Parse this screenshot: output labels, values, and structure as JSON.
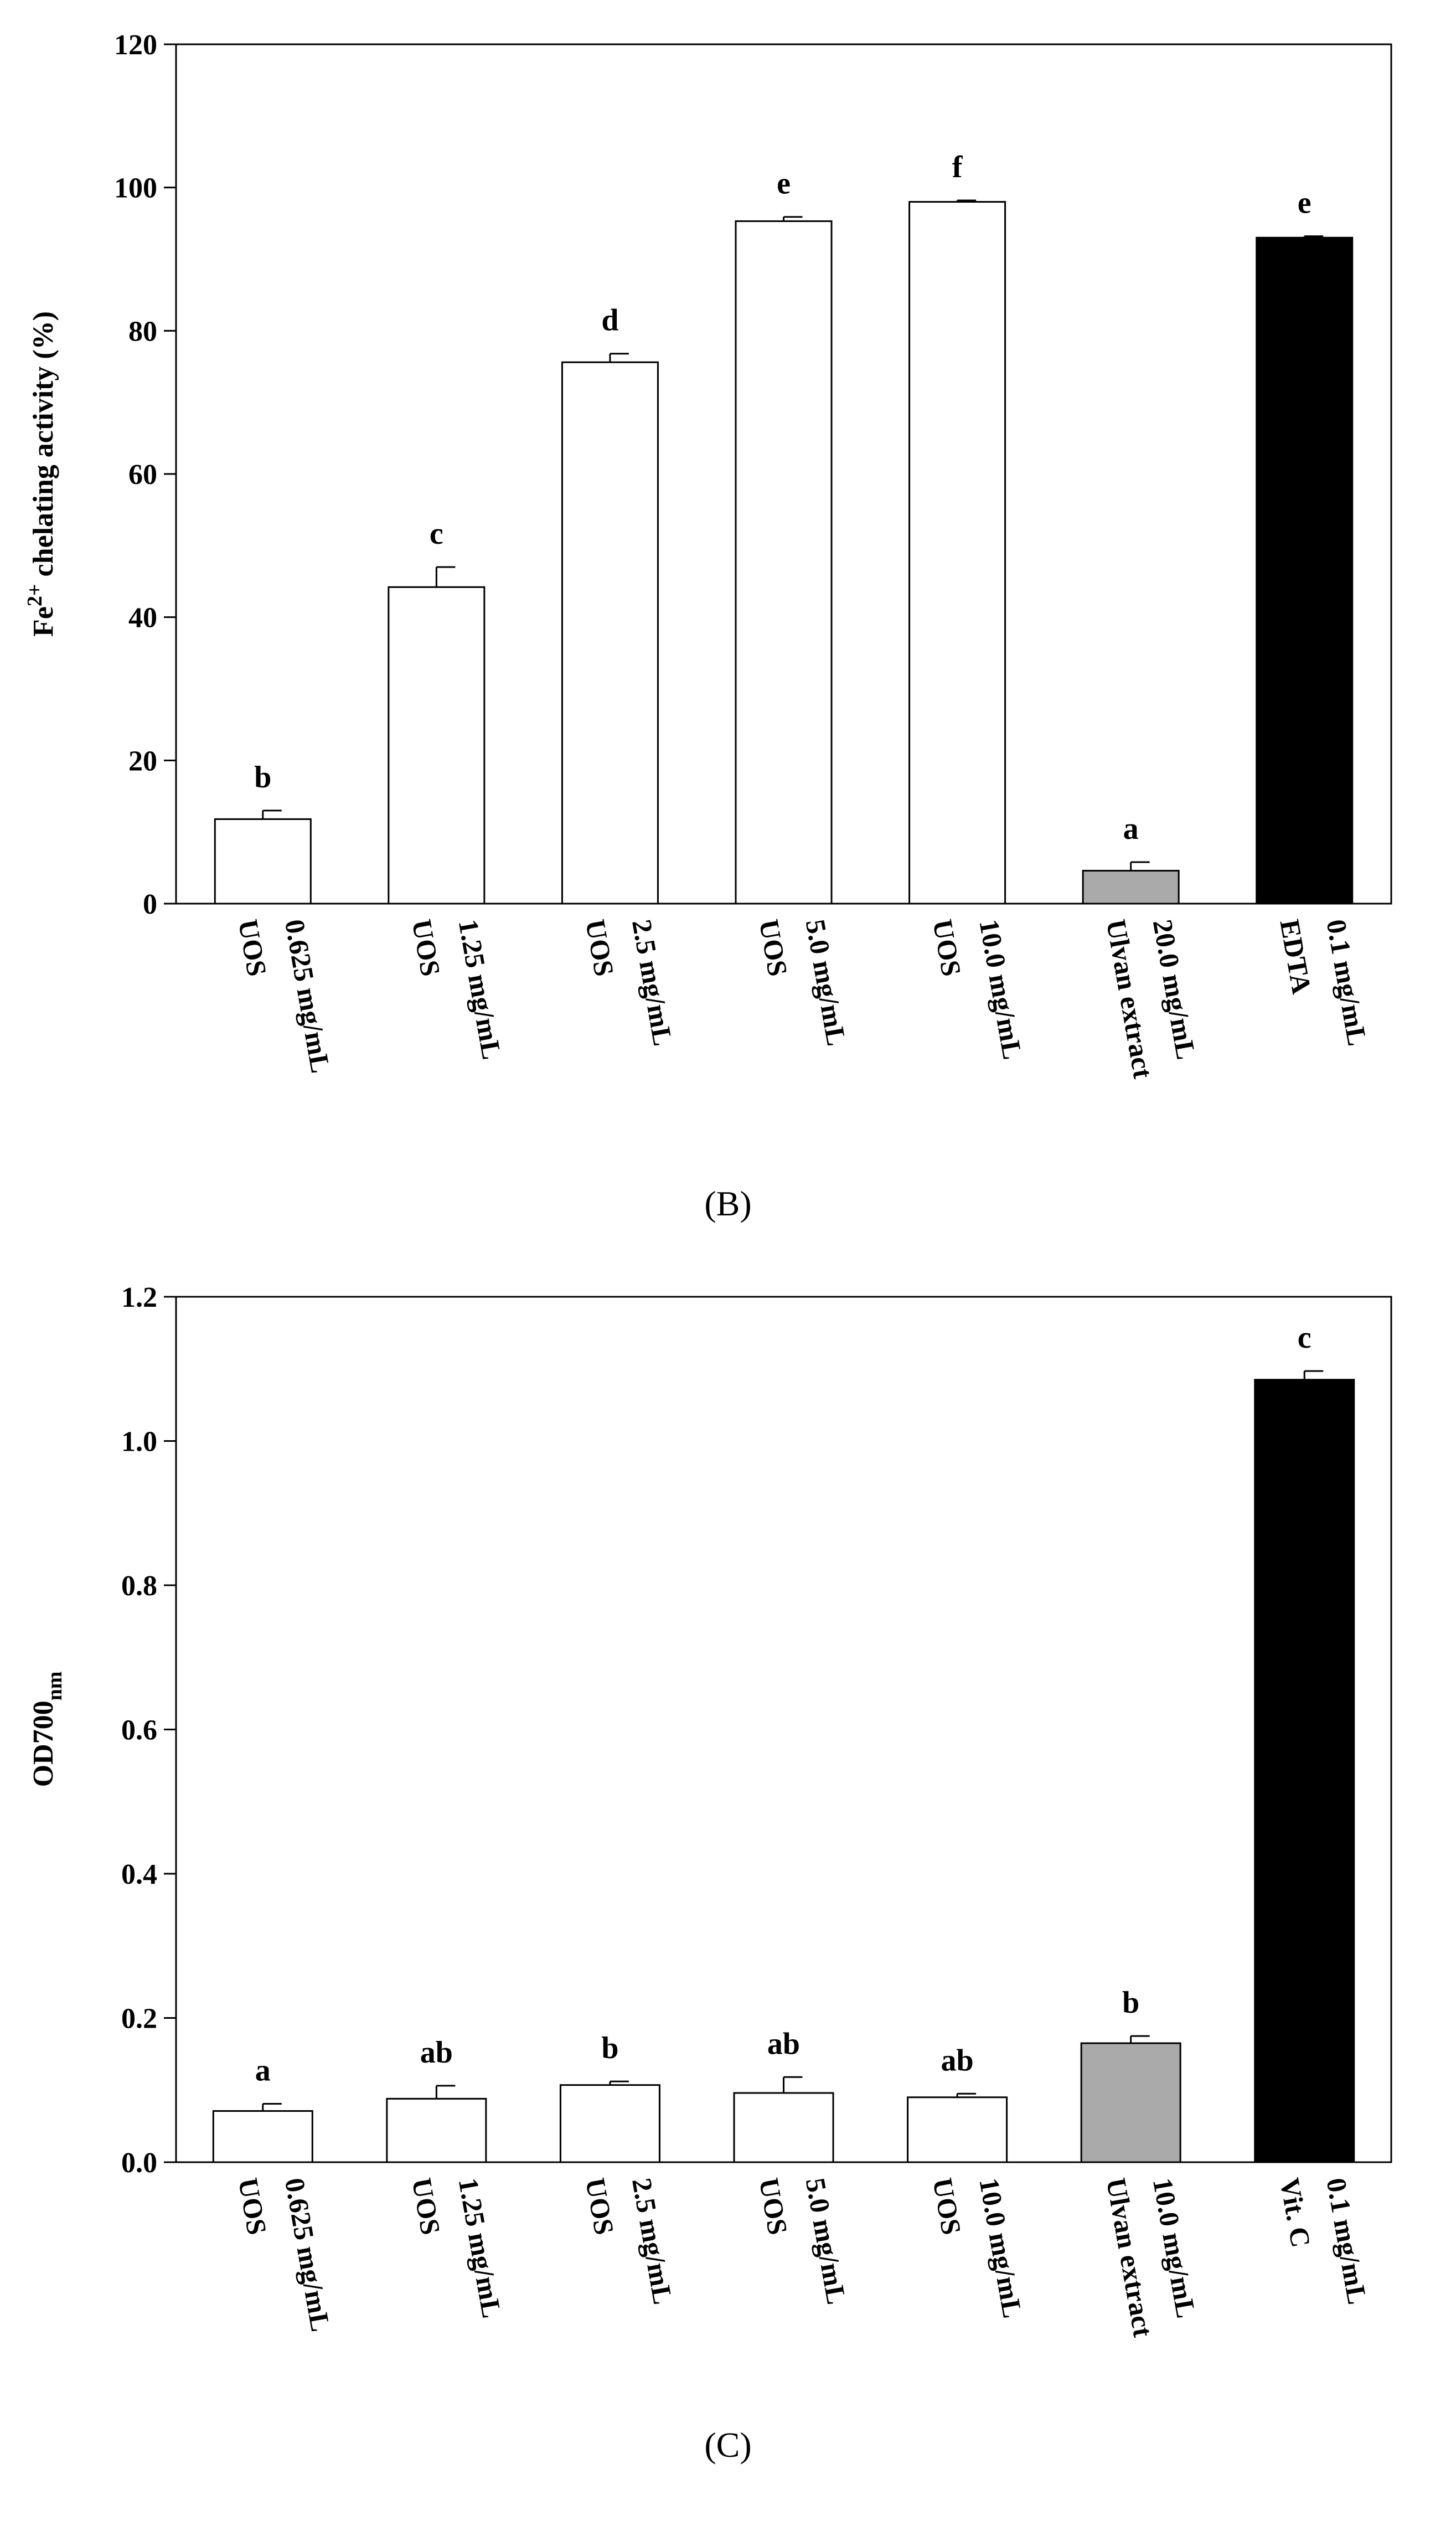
{
  "chart_data": [
    {
      "type": "bar",
      "panel_label": "(B)",
      "ylabel": {
        "base": "Fe",
        "sup": "2+",
        "rest": " chelating activity (%)"
      },
      "ylim": [
        0,
        120
      ],
      "yticks": [
        "0",
        "20",
        "40",
        "60",
        "80",
        "100",
        "120"
      ],
      "categories": [
        {
          "line1": "UOS",
          "line2": "0.625 mg/mL"
        },
        {
          "line1": "UOS",
          "line2": "1.25 mg/mL"
        },
        {
          "line1": "UOS",
          "line2": "2.5 mg/mL"
        },
        {
          "line1": "UOS",
          "line2": "5.0 mg/mL"
        },
        {
          "line1": "UOS",
          "line2": "10.0 mg/mL"
        },
        {
          "line1": "Ulvan extract",
          "line2": "20.0 mg/mL"
        },
        {
          "line1": "EDTA",
          "line2": "0.1 mg/mL"
        }
      ],
      "values": [
        11.8,
        44.2,
        75.6,
        95.3,
        98.0,
        4.6,
        93.0
      ],
      "errors": [
        1.2,
        2.8,
        1.2,
        0.6,
        0.2,
        1.2,
        0.2
      ],
      "letters": [
        "b",
        "c",
        "d",
        "e",
        "f",
        "a",
        "e"
      ],
      "colors": [
        "#ffffff",
        "#ffffff",
        "#ffffff",
        "#ffffff",
        "#ffffff",
        "#aaaaaa",
        "#000000"
      ]
    },
    {
      "type": "bar",
      "panel_label": "(C)",
      "ylabel": {
        "base": "OD700",
        "sub": "nm"
      },
      "ylim": [
        0,
        1.2
      ],
      "yticks": [
        "0.0",
        "0.2",
        "0.4",
        "0.6",
        "0.8",
        "1.0",
        "1.2"
      ],
      "categories": [
        {
          "line1": "UOS",
          "line2": "0.625 mg/mL"
        },
        {
          "line1": "UOS",
          "line2": "1.25 mg/mL"
        },
        {
          "line1": "UOS",
          "line2": "2.5 mg/mL"
        },
        {
          "line1": "UOS",
          "line2": "5.0 mg/mL"
        },
        {
          "line1": "UOS",
          "line2": "10.0 mg/mL"
        },
        {
          "line1": "Ulvan extract",
          "line2": "10.0 mg/mL"
        },
        {
          "line1": "Vit. C",
          "line2": "0.1 mg/mL"
        }
      ],
      "values": [
        0.071,
        0.088,
        0.107,
        0.096,
        0.09,
        0.165,
        1.085
      ],
      "errors": [
        0.01,
        0.018,
        0.005,
        0.022,
        0.005,
        0.01,
        0.012
      ],
      "letters": [
        "a",
        "ab",
        "b",
        "ab",
        "ab",
        "b",
        "c"
      ],
      "colors": [
        "#ffffff",
        "#ffffff",
        "#ffffff",
        "#ffffff",
        "#ffffff",
        "#aaaaaa",
        "#000000"
      ]
    }
  ]
}
